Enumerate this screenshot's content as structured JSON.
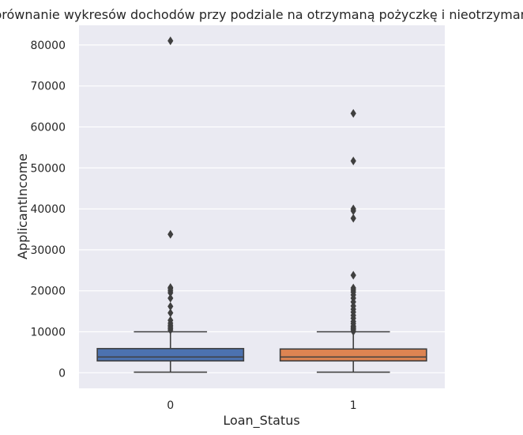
{
  "chart_data": {
    "type": "box",
    "title": "Porównanie wykresów dochodów przy podziale na otrzymaną pożyczkę i nieotrzymaną",
    "xlabel": "Loan_Status",
    "ylabel": "ApplicantIncome",
    "categories": [
      "0",
      "1"
    ],
    "ylim": [
      -3800,
      84800
    ],
    "yticks": [
      0,
      10000,
      20000,
      30000,
      40000,
      50000,
      60000,
      70000,
      80000
    ],
    "ytick_labels": [
      "0",
      "10000",
      "20000",
      "30000",
      "40000",
      "50000",
      "60000",
      "70000",
      "80000"
    ],
    "grid": true,
    "boxes": [
      {
        "category": "0",
        "color": "#4C72B0",
        "whisker_low": 150,
        "q1": 2900,
        "median": 3850,
        "q3": 5900,
        "whisker_high": 10000,
        "outliers": [
          10400,
          10800,
          11200,
          11600,
          12100,
          12800,
          14600,
          16200,
          18200,
          19500,
          20000,
          20500,
          20800,
          33800,
          81000
        ]
      },
      {
        "category": "1",
        "color": "#DD8452",
        "whisker_low": 150,
        "q1": 2900,
        "median": 3850,
        "q3": 5800,
        "whisker_high": 10000,
        "outliers": [
          10100,
          10500,
          10800,
          11100,
          11400,
          12000,
          12500,
          13300,
          14000,
          14800,
          15500,
          16300,
          17300,
          18200,
          19000,
          19700,
          20200,
          20700,
          23800,
          37700,
          39500,
          40000,
          51700,
          63300
        ]
      }
    ]
  }
}
